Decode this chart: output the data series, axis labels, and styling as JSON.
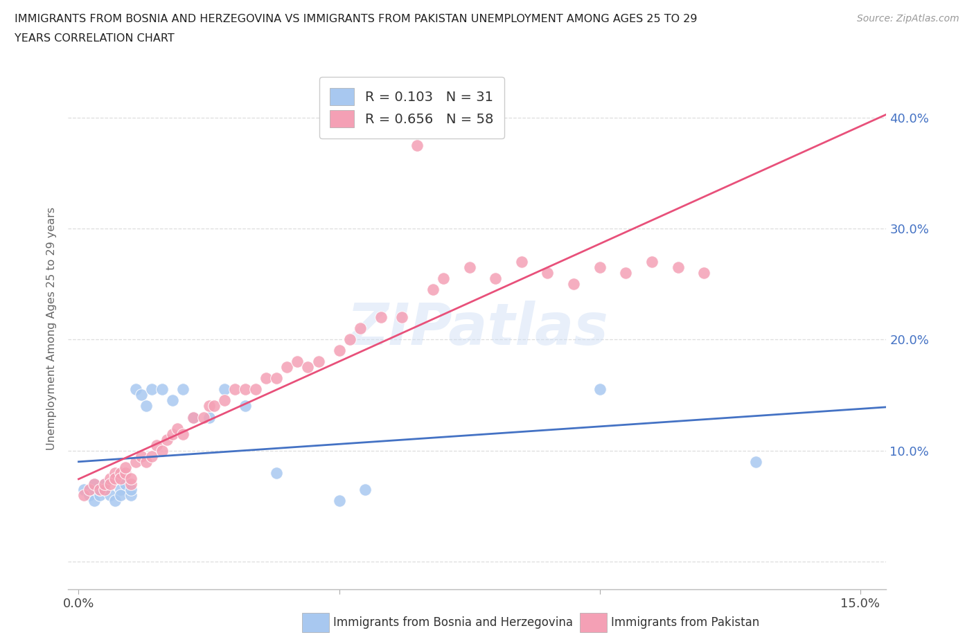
{
  "title_line1": "IMMIGRANTS FROM BOSNIA AND HERZEGOVINA VS IMMIGRANTS FROM PAKISTAN UNEMPLOYMENT AMONG AGES 25 TO 29",
  "title_line2": "YEARS CORRELATION CHART",
  "source": "Source: ZipAtlas.com",
  "ylabel": "Unemployment Among Ages 25 to 29 years",
  "xlim": [
    -0.002,
    0.155
  ],
  "ylim": [
    -0.025,
    0.445
  ],
  "yticks": [
    0.0,
    0.1,
    0.2,
    0.3,
    0.4
  ],
  "xticks": [
    0.0,
    0.05,
    0.1,
    0.15
  ],
  "xtick_labels": [
    "0.0%",
    "",
    "",
    "15.0%"
  ],
  "ytick_labels_right": [
    "",
    "10.0%",
    "20.0%",
    "30.0%",
    "40.0%"
  ],
  "bosnia_color": "#a8c8f0",
  "pakistan_color": "#f4a0b5",
  "bosnia_line_color": "#4472c4",
  "pakistan_line_color": "#e8507a",
  "legend_bosnia_R": "0.103",
  "legend_bosnia_N": "31",
  "legend_pakistan_R": "0.656",
  "legend_pakistan_N": "58",
  "watermark": "ZIPatlas",
  "bosnia_x": [
    0.001,
    0.002,
    0.003,
    0.003,
    0.004,
    0.004,
    0.005,
    0.005,
    0.006,
    0.007,
    0.008,
    0.008,
    0.009,
    0.01,
    0.01,
    0.011,
    0.012,
    0.013,
    0.014,
    0.016,
    0.018,
    0.02,
    0.022,
    0.025,
    0.028,
    0.032,
    0.038,
    0.05,
    0.055,
    0.1,
    0.13
  ],
  "bosnia_y": [
    0.065,
    0.06,
    0.055,
    0.07,
    0.06,
    0.065,
    0.07,
    0.065,
    0.06,
    0.055,
    0.065,
    0.06,
    0.07,
    0.06,
    0.065,
    0.155,
    0.15,
    0.14,
    0.155,
    0.155,
    0.145,
    0.155,
    0.13,
    0.13,
    0.155,
    0.14,
    0.08,
    0.055,
    0.065,
    0.155,
    0.09
  ],
  "pakistan_x": [
    0.001,
    0.002,
    0.003,
    0.004,
    0.005,
    0.005,
    0.006,
    0.006,
    0.007,
    0.007,
    0.008,
    0.008,
    0.009,
    0.009,
    0.01,
    0.01,
    0.011,
    0.012,
    0.013,
    0.014,
    0.015,
    0.016,
    0.017,
    0.018,
    0.019,
    0.02,
    0.022,
    0.024,
    0.025,
    0.026,
    0.028,
    0.03,
    0.032,
    0.034,
    0.036,
    0.038,
    0.04,
    0.042,
    0.044,
    0.046,
    0.05,
    0.052,
    0.054,
    0.058,
    0.062,
    0.065,
    0.068,
    0.07,
    0.075,
    0.08,
    0.085,
    0.09,
    0.095,
    0.1,
    0.105,
    0.11,
    0.115,
    0.12
  ],
  "pakistan_y": [
    0.06,
    0.065,
    0.07,
    0.065,
    0.065,
    0.07,
    0.075,
    0.07,
    0.08,
    0.075,
    0.08,
    0.075,
    0.08,
    0.085,
    0.07,
    0.075,
    0.09,
    0.095,
    0.09,
    0.095,
    0.105,
    0.1,
    0.11,
    0.115,
    0.12,
    0.115,
    0.13,
    0.13,
    0.14,
    0.14,
    0.145,
    0.155,
    0.155,
    0.155,
    0.165,
    0.165,
    0.175,
    0.18,
    0.175,
    0.18,
    0.19,
    0.2,
    0.21,
    0.22,
    0.22,
    0.375,
    0.245,
    0.255,
    0.265,
    0.255,
    0.27,
    0.26,
    0.25,
    0.265,
    0.26,
    0.27,
    0.265,
    0.26
  ]
}
